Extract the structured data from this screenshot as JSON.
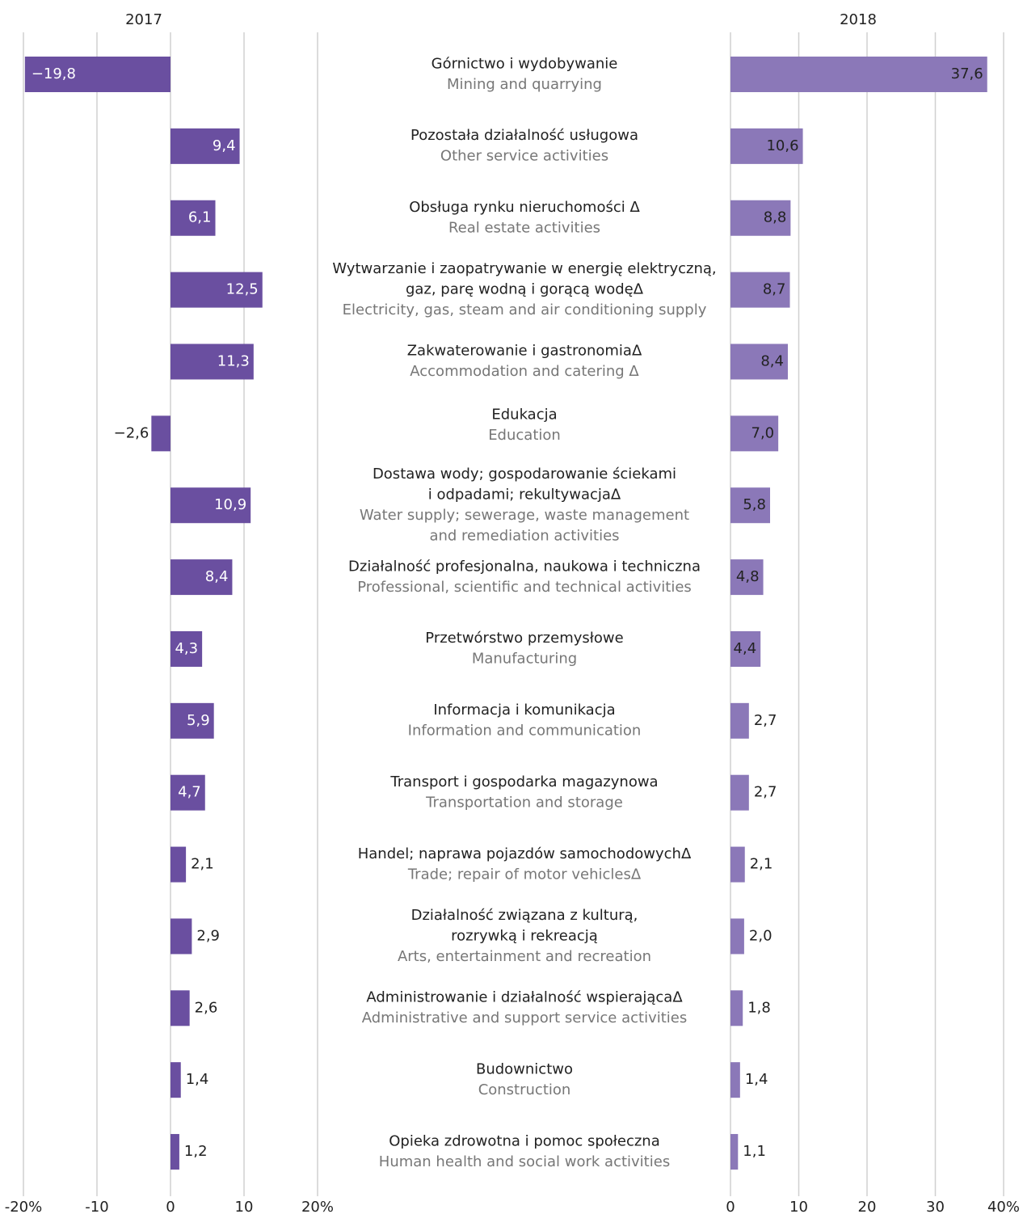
{
  "chart_data": [
    {
      "type": "bar",
      "title": "2017",
      "color": "#6a4fa0",
      "categories": [
        [
          "Górnictwo i wydobywanie"
        ],
        [
          "Pozostała działalność usługowa"
        ],
        [
          "Obsługa rynku nieruchomości Δ"
        ],
        [
          "Wytwarzanie i zaopatrywanie w energię elektryczną,",
          "gaz, parę wodną i gorącą wodęΔ"
        ],
        [
          "Zakwaterowanie i gastronomiaΔ"
        ],
        [
          "Edukacja"
        ],
        [
          "Dostawa wody; gospodarowanie ściekami",
          "i odpadami; rekultywacjaΔ"
        ],
        [
          "Działalność profesjonalna, naukowa i techniczna"
        ],
        [
          "Przetwórstwo przemysłowe"
        ],
        [
          "Informacja i komunikacja"
        ],
        [
          "Transport i gospodarka magazynowa"
        ],
        [
          "Handel; naprawa pojazdów samochodowychΔ"
        ],
        [
          "Działalność związana z kulturą,",
          "rozrywką i rekreacją"
        ],
        [
          "Administrowanie i działalność wspierającaΔ"
        ],
        [
          "Budownictwo"
        ],
        [
          "Opieka zdrowotna i pomoc społeczna"
        ]
      ],
      "categories_en": [
        [
          "Mining and quarrying"
        ],
        [
          "Other service activities"
        ],
        [
          "Real estate activities"
        ],
        [
          "Electricity, gas, steam and air conditioning supply"
        ],
        [
          "Accommodation and catering Δ"
        ],
        [
          "Education"
        ],
        [
          "Water supply; sewerage, waste management",
          "and remediation activities"
        ],
        [
          "Professional, scientific and technical activities"
        ],
        [
          "Manufacturing"
        ],
        [
          "Information and communication"
        ],
        [
          "Transportation and storage"
        ],
        [
          "Trade; repair of motor vehiclesΔ"
        ],
        [
          "Arts, entertainment and recreation"
        ],
        [
          "Administrative and support service activities"
        ],
        [
          "Construction"
        ],
        [
          "Human health and social work activities"
        ]
      ],
      "values": [
        -19.8,
        9.4,
        6.1,
        12.5,
        11.3,
        -2.6,
        10.9,
        8.4,
        4.3,
        5.9,
        4.7,
        2.1,
        2.9,
        2.6,
        1.4,
        1.2
      ],
      "value_labels": [
        "−19,8",
        "9,4",
        "6,1",
        "12,5",
        "11,3",
        "−2,6",
        "10,9",
        "8,4",
        "4,3",
        "5,9",
        "4,7",
        "2,1",
        "2,9",
        "2,6",
        "1,4",
        "1,2"
      ],
      "xlim": [
        -20,
        20
      ],
      "xticks": [
        {
          "value": -20,
          "label": "-20%"
        },
        -10,
        0,
        10,
        {
          "value": 20,
          "label": "20%"
        }
      ],
      "grid": true
    },
    {
      "type": "bar",
      "title": "2018",
      "color": "#8b78b8",
      "values": [
        37.6,
        10.6,
        8.8,
        8.7,
        8.4,
        7.0,
        5.8,
        4.8,
        4.4,
        2.7,
        2.7,
        2.1,
        2.0,
        1.8,
        1.4,
        1.1
      ],
      "value_labels": [
        "37,6",
        "10,6",
        "8,8",
        "8,7",
        "8,4",
        "7,0",
        "5,8",
        "4,8",
        "4,4",
        "2,7",
        "2,7",
        "2,1",
        "2,0",
        "1,8",
        "1,4",
        "1,1"
      ],
      "xlim": [
        0,
        40
      ],
      "xticks": [
        0,
        10,
        20,
        30,
        {
          "value": 40,
          "label": "40%"
        }
      ],
      "grid": true
    }
  ]
}
